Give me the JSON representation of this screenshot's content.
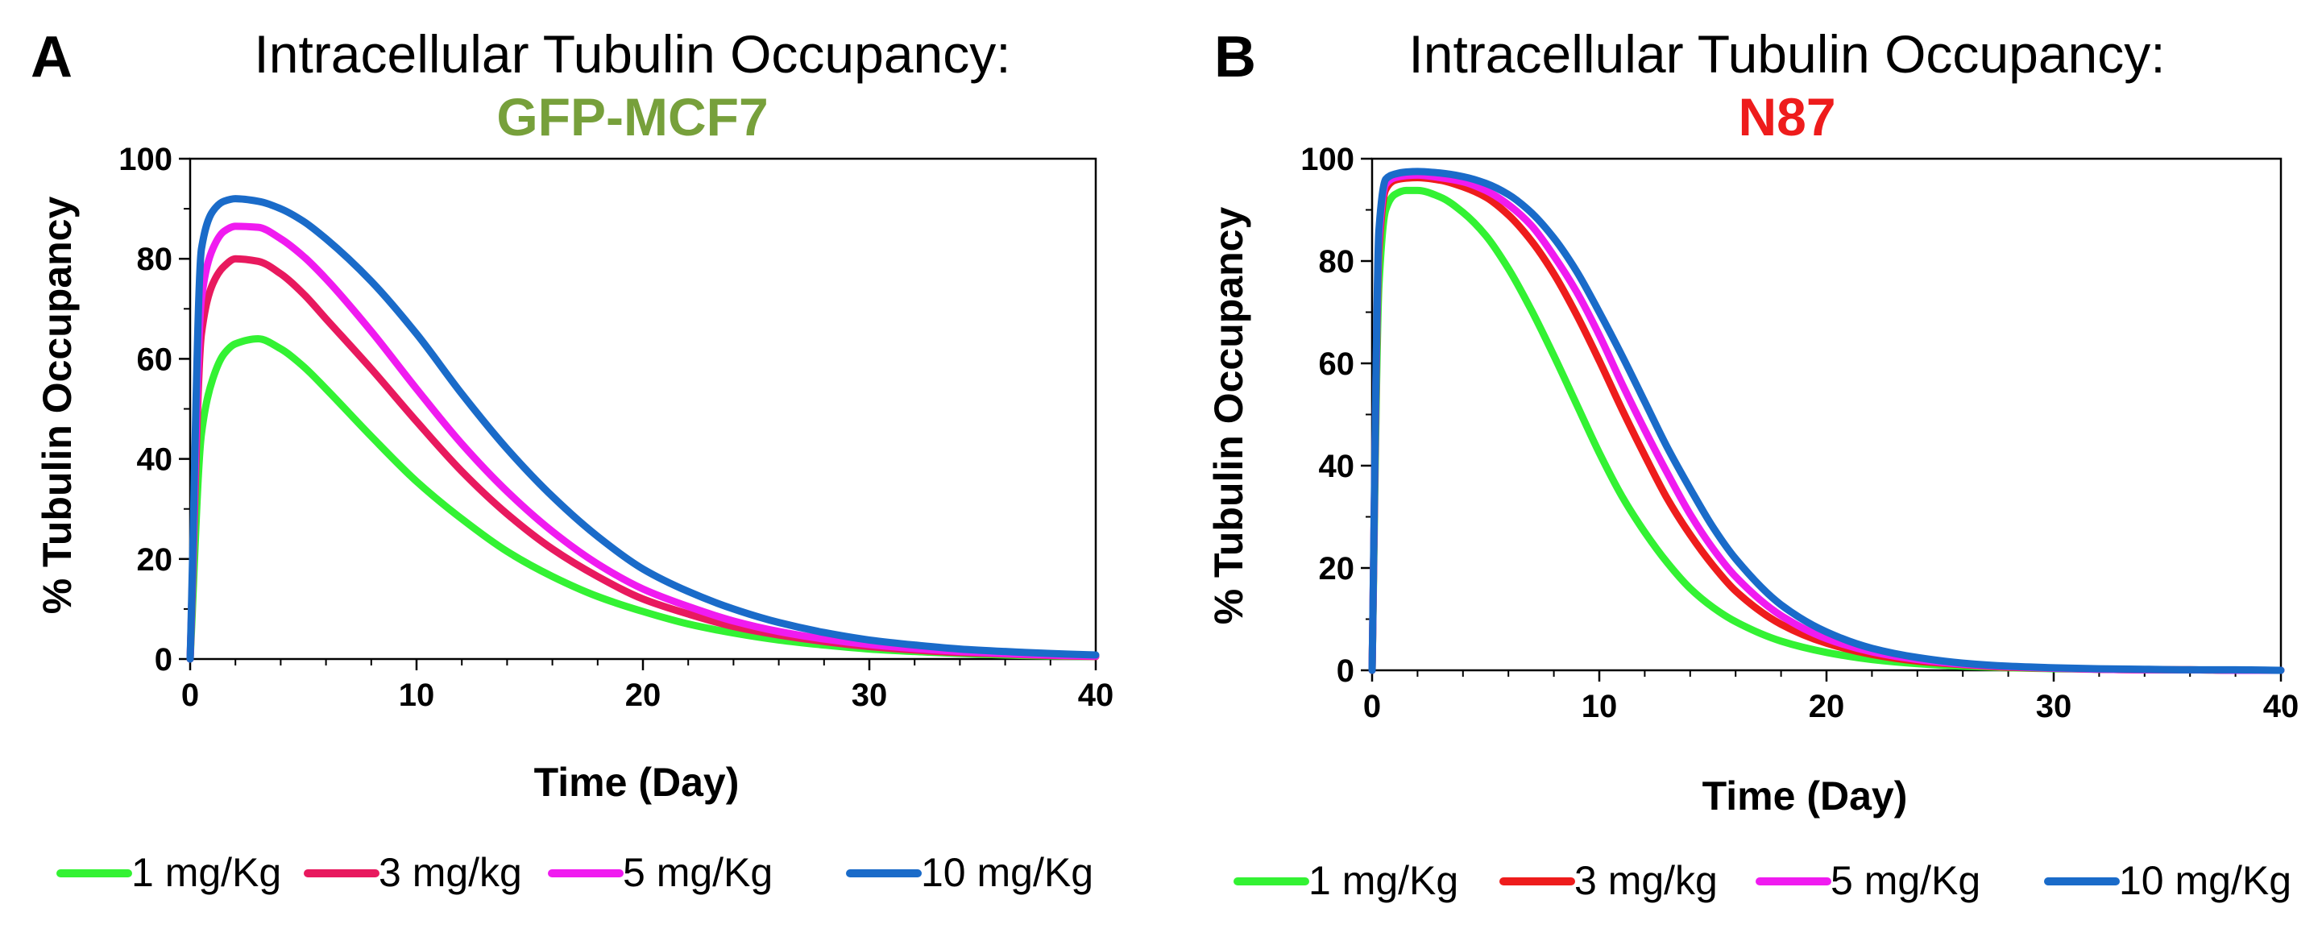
{
  "chart_data": [
    {
      "type": "line",
      "panel_label": "A",
      "title": "Intracellular Tubulin Occupancy:",
      "subtitle": "GFP-MCF7",
      "subtitle_color": "#77A03B",
      "xlabel": "Time (Day)",
      "ylabel": "% Tubulin Occupancy",
      "xlim": [
        0,
        40
      ],
      "ylim": [
        0,
        100
      ],
      "xticks": [
        0,
        10,
        20,
        30,
        40
      ],
      "yticks": [
        0,
        20,
        40,
        60,
        80,
        100
      ],
      "grid": false,
      "legend_position": "bottom",
      "series": [
        {
          "name": "1 mg/Kg",
          "color": "#33F233",
          "x": [
            0,
            0.5,
            1,
            1.5,
            2,
            3,
            4,
            5,
            6,
            8,
            10,
            12,
            14,
            16,
            18,
            20,
            22,
            24,
            26,
            28,
            30,
            32,
            34,
            36,
            38,
            40
          ],
          "y": [
            0,
            45,
            56,
            61,
            63,
            64,
            62,
            58.5,
            54,
            44.5,
            35.5,
            28,
            21.5,
            16.5,
            12.5,
            9.5,
            7,
            5.2,
            3.8,
            2.8,
            2,
            1.5,
            1.1,
            0.8,
            0.6,
            0.5
          ]
        },
        {
          "name": "3 mg/kg",
          "color": "#E8195E",
          "x": [
            0,
            0.5,
            1,
            1.5,
            2,
            3,
            4,
            5,
            6,
            8,
            10,
            12,
            14,
            16,
            18,
            20,
            22,
            24,
            26,
            28,
            30,
            32,
            34,
            36,
            38,
            40
          ],
          "y": [
            0,
            65,
            75,
            78.5,
            80,
            79.5,
            77,
            73,
            68,
            58,
            47.5,
            37.5,
            29,
            22,
            16.5,
            12,
            9,
            6.5,
            4.8,
            3.5,
            2.5,
            1.8,
            1.3,
            1,
            0.7,
            0.5
          ]
        },
        {
          "name": "5 mg/Kg",
          "color": "#F01BF0",
          "x": [
            0,
            0.5,
            1,
            1.5,
            2,
            3,
            4,
            5,
            6,
            8,
            10,
            12,
            14,
            16,
            18,
            20,
            22,
            24,
            26,
            28,
            30,
            32,
            34,
            36,
            38,
            40
          ],
          "y": [
            0,
            72,
            82,
            85.5,
            86.5,
            86.3,
            84,
            80.5,
            76,
            65.5,
            54,
            43,
            33.5,
            25.5,
            19,
            14,
            10.5,
            7.6,
            5.5,
            4,
            2.9,
            2.1,
            1.5,
            1.1,
            0.8,
            0.6
          ]
        },
        {
          "name": "10 mg/Kg",
          "color": "#1A6BC9",
          "x": [
            0,
            0.5,
            1,
            1.5,
            2,
            3,
            4,
            5,
            6,
            8,
            10,
            12,
            14,
            16,
            18,
            20,
            22,
            24,
            26,
            28,
            30,
            32,
            34,
            36,
            38,
            40
          ],
          "y": [
            0,
            82,
            89.5,
            91.5,
            92,
            91.5,
            90,
            87.5,
            84,
            75.5,
            65,
            53,
            42,
            32.5,
            24.5,
            18,
            13.5,
            10,
            7.3,
            5.3,
            3.8,
            2.8,
            2,
            1.5,
            1.1,
            0.8
          ]
        }
      ]
    },
    {
      "type": "line",
      "panel_label": "B",
      "title": "Intracellular Tubulin Occupancy:",
      "subtitle": "N87",
      "subtitle_color": "#EE1C1C",
      "xlabel": "Time (Day)",
      "ylabel": "% Tubulin Occupancy",
      "xlim": [
        0,
        40
      ],
      "ylim": [
        0,
        100
      ],
      "xticks": [
        0,
        10,
        20,
        30,
        40
      ],
      "yticks": [
        0,
        20,
        40,
        60,
        80,
        100
      ],
      "grid": false,
      "legend_position": "bottom",
      "series": [
        {
          "name": "1 mg/Kg",
          "color": "#33F233",
          "x": [
            0,
            0.3,
            0.6,
            1,
            1.5,
            2,
            3,
            4,
            5,
            6,
            7,
            8,
            9,
            10,
            11,
            12,
            13,
            14,
            15,
            16,
            18,
            20,
            22,
            24,
            26,
            28,
            30,
            32,
            34,
            36,
            38,
            40
          ],
          "y": [
            0,
            75,
            90,
            93,
            93.8,
            93.8,
            92.5,
            89.5,
            85,
            78.5,
            70.5,
            61.5,
            52,
            42.5,
            34,
            27,
            21,
            16,
            12.3,
            9.5,
            5.7,
            3.5,
            2.1,
            1.3,
            0.8,
            0.5,
            0.3,
            0.2,
            0.1,
            0.1,
            0,
            0
          ]
        },
        {
          "name": "3 mg/kg",
          "color": "#EE1C1C",
          "x": [
            0,
            0.3,
            0.6,
            1,
            1.5,
            2,
            3,
            4,
            5,
            6,
            7,
            8,
            9,
            10,
            11,
            12,
            13,
            14,
            15,
            16,
            18,
            20,
            22,
            24,
            26,
            28,
            30,
            32,
            34,
            36,
            38,
            40
          ],
          "y": [
            0,
            82,
            94,
            95.8,
            96.2,
            96.3,
            95.8,
            94.5,
            92.5,
            89,
            84,
            77.5,
            69.5,
            60.5,
            51,
            42,
            33.5,
            26.5,
            20.5,
            15.5,
            9,
            5.3,
            3.1,
            1.8,
            1.1,
            0.6,
            0.4,
            0.2,
            0.1,
            0.1,
            0,
            0
          ]
        },
        {
          "name": "5 mg/Kg",
          "color": "#F01BF0",
          "x": [
            0,
            0.3,
            0.6,
            1,
            1.5,
            2,
            3,
            4,
            5,
            6,
            7,
            8,
            9,
            10,
            11,
            12,
            13,
            14,
            15,
            16,
            18,
            20,
            22,
            24,
            26,
            28,
            30,
            32,
            34,
            36,
            38,
            40
          ],
          "y": [
            0,
            84,
            95,
            96.3,
            96.7,
            96.8,
            96.3,
            95.5,
            93.8,
            91,
            87,
            81,
            74,
            65.5,
            56,
            47,
            38.5,
            30.5,
            23.8,
            18.3,
            10.7,
            6.2,
            3.6,
            2.1,
            1.2,
            0.7,
            0.4,
            0.2,
            0.1,
            0.1,
            0,
            0
          ]
        },
        {
          "name": "10 mg/Kg",
          "color": "#1A6BC9",
          "x": [
            0,
            0.3,
            0.6,
            1,
            1.5,
            2,
            3,
            4,
            5,
            6,
            7,
            8,
            9,
            10,
            11,
            12,
            13,
            14,
            15,
            16,
            18,
            20,
            22,
            24,
            26,
            28,
            30,
            32,
            34,
            36,
            38,
            40
          ],
          "y": [
            0,
            86,
            96,
            97,
            97.4,
            97.5,
            97.2,
            96.5,
            95.2,
            93,
            89.5,
            84.5,
            78,
            70,
            61.5,
            52.5,
            43.5,
            35.5,
            28,
            21.8,
            12.8,
            7.5,
            4.3,
            2.5,
            1.4,
            0.8,
            0.5,
            0.3,
            0.2,
            0.1,
            0.1,
            0
          ]
        }
      ]
    }
  ]
}
